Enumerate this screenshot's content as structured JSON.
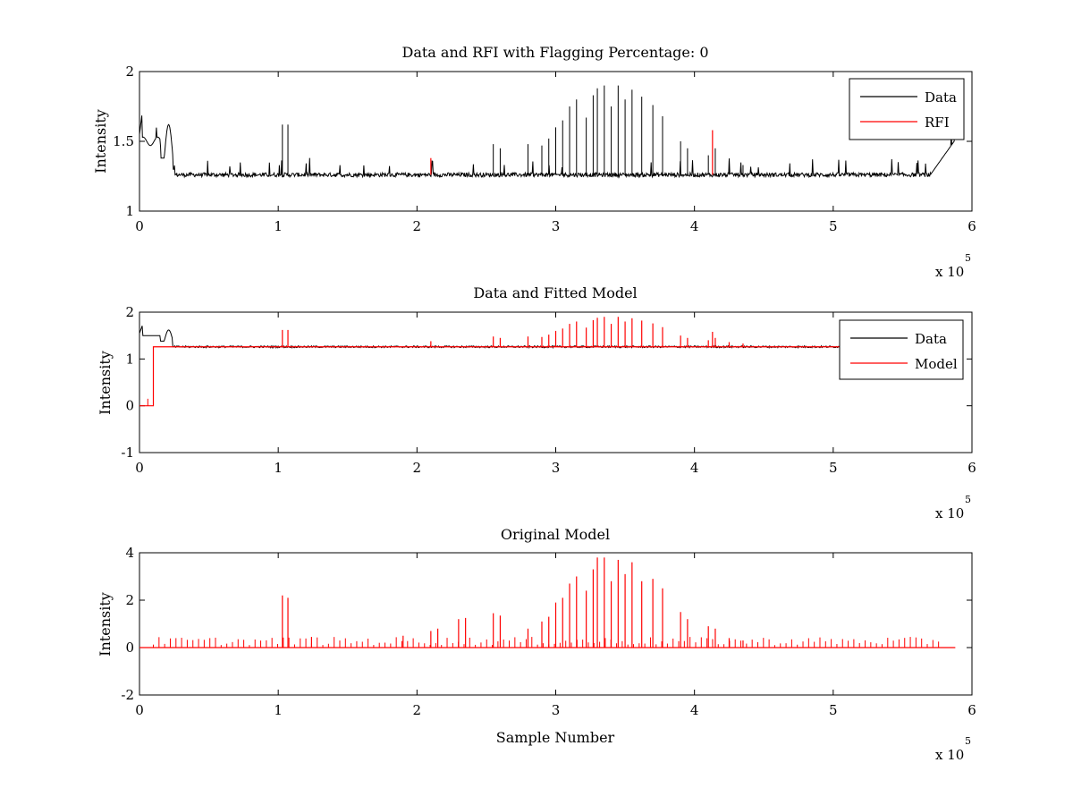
{
  "chart_data": [
    {
      "type": "line",
      "title": "Data and RFI with Flagging Percentage: 0",
      "ylabel": "Intensity",
      "xlabel": "",
      "xlim": [
        0,
        6
      ],
      "ylim": [
        1,
        2
      ],
      "x_ticks": [
        "0",
        "1",
        "2",
        "3",
        "4",
        "5",
        "6"
      ],
      "y_ticks": [
        "1",
        "1.5",
        "2"
      ],
      "x_multiplier": {
        "base": "x 10",
        "exponent": "5"
      },
      "legend": {
        "position": "top-right",
        "entries": [
          "Data",
          "RFI"
        ]
      },
      "series": [
        {
          "name": "Data",
          "color": "#000000",
          "baseline": 1.26,
          "spikes": [
            [
              1.03,
              1.62
            ],
            [
              1.07,
              1.62
            ],
            [
              2.55,
              1.48
            ],
            [
              2.6,
              1.45
            ],
            [
              2.8,
              1.48
            ],
            [
              2.9,
              1.47
            ],
            [
              2.95,
              1.52
            ],
            [
              3.0,
              1.6
            ],
            [
              3.05,
              1.65
            ],
            [
              3.1,
              1.75
            ],
            [
              3.15,
              1.8
            ],
            [
              3.22,
              1.67
            ],
            [
              3.27,
              1.83
            ],
            [
              3.3,
              1.88
            ],
            [
              3.35,
              1.9
            ],
            [
              3.4,
              1.75
            ],
            [
              3.45,
              1.9
            ],
            [
              3.5,
              1.8
            ],
            [
              3.55,
              1.87
            ],
            [
              3.62,
              1.82
            ],
            [
              3.7,
              1.76
            ],
            [
              3.77,
              1.68
            ],
            [
              3.9,
              1.5
            ],
            [
              3.95,
              1.45
            ],
            [
              4.1,
              1.4
            ],
            [
              4.15,
              1.45
            ],
            [
              4.25,
              1.36
            ],
            [
              4.35,
              1.33
            ]
          ]
        },
        {
          "name": "RFI",
          "color": "#ff0000",
          "spikes": [
            [
              2.1,
              1.38
            ],
            [
              4.13,
              1.58
            ]
          ]
        }
      ]
    },
    {
      "type": "line",
      "title": "Data and Fitted Model",
      "ylabel": "Intensity",
      "xlabel": "",
      "xlim": [
        0,
        6
      ],
      "ylim": [
        -1,
        2
      ],
      "x_ticks": [
        "0",
        "1",
        "2",
        "3",
        "4",
        "5",
        "6"
      ],
      "y_ticks": [
        "-1",
        "0",
        "1",
        "2"
      ],
      "x_multiplier": {
        "base": "x 10",
        "exponent": "5"
      },
      "legend": {
        "position": "top-right",
        "entries": [
          "Data",
          "Model"
        ]
      },
      "series": [
        {
          "name": "Data",
          "color": "#000000",
          "baseline": 1.26
        },
        {
          "name": "Model",
          "color": "#ff0000",
          "baseline": 1.26,
          "step_start": 0.1,
          "initial_value": 0
        }
      ]
    },
    {
      "type": "line",
      "title": "Original Model",
      "ylabel": "Intensity",
      "xlabel": "Sample Number",
      "xlim": [
        0,
        6
      ],
      "ylim": [
        -2,
        4
      ],
      "x_ticks": [
        "0",
        "1",
        "2",
        "3",
        "4",
        "5",
        "6"
      ],
      "y_ticks": [
        "-2",
        "0",
        "2",
        "4"
      ],
      "x_multiplier": {
        "base": "x 10",
        "exponent": "5"
      },
      "series": [
        {
          "color": "#ff0000",
          "baseline": 0,
          "spikes": [
            [
              1.03,
              2.2
            ],
            [
              1.07,
              2.1
            ],
            [
              1.24,
              0.45
            ],
            [
              1.9,
              0.5
            ],
            [
              2.1,
              0.7
            ],
            [
              2.15,
              0.8
            ],
            [
              2.3,
              1.2
            ],
            [
              2.35,
              1.25
            ],
            [
              2.55,
              1.45
            ],
            [
              2.6,
              1.35
            ],
            [
              2.8,
              0.8
            ],
            [
              2.9,
              1.1
            ],
            [
              2.95,
              1.3
            ],
            [
              3.0,
              1.9
            ],
            [
              3.05,
              2.1
            ],
            [
              3.1,
              2.7
            ],
            [
              3.15,
              3.0
            ],
            [
              3.22,
              2.4
            ],
            [
              3.27,
              3.3
            ],
            [
              3.3,
              3.8
            ],
            [
              3.35,
              3.8
            ],
            [
              3.4,
              2.8
            ],
            [
              3.45,
              3.7
            ],
            [
              3.5,
              3.1
            ],
            [
              3.55,
              3.6
            ],
            [
              3.62,
              2.8
            ],
            [
              3.7,
              2.9
            ],
            [
              3.77,
              2.5
            ],
            [
              3.9,
              1.5
            ],
            [
              3.95,
              1.2
            ],
            [
              4.1,
              0.9
            ],
            [
              4.15,
              0.8
            ],
            [
              4.25,
              0.4
            ],
            [
              4.35,
              0.3
            ]
          ]
        }
      ]
    }
  ]
}
